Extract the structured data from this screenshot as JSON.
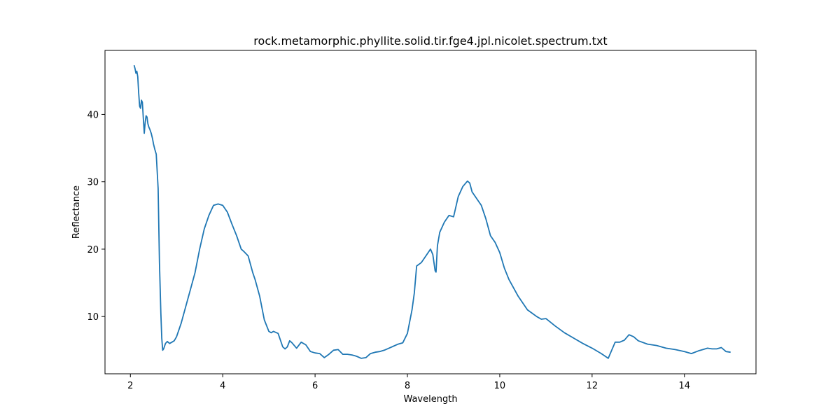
{
  "chart_data": {
    "type": "line",
    "title": "rock.metamorphic.phyllite.solid.tir.fge4.jpl.nicolet.spectrum.txt",
    "xlabel": "Wavelength",
    "ylabel": "Reflectance",
    "xlim": [
      1.45,
      15.55
    ],
    "ylim": [
      1.5,
      49.5
    ],
    "xticks": [
      2,
      4,
      6,
      8,
      10,
      12,
      14
    ],
    "yticks": [
      10,
      20,
      30,
      40
    ],
    "grid": false,
    "legend": "none",
    "series_color": "#1f77b4",
    "series": [
      {
        "x": [
          2.08,
          2.1,
          2.12,
          2.14,
          2.16,
          2.18,
          2.2,
          2.22,
          2.24,
          2.26,
          2.28,
          2.3,
          2.32,
          2.34,
          2.36,
          2.38,
          2.4,
          2.42,
          2.45,
          2.48,
          2.5,
          2.53,
          2.56,
          2.6,
          2.63,
          2.66,
          2.68,
          2.7,
          2.72,
          2.74,
          2.76,
          2.8,
          2.85,
          2.9,
          2.95,
          3.0,
          3.1,
          3.2,
          3.3,
          3.4,
          3.5,
          3.6,
          3.7,
          3.8,
          3.9,
          4.0,
          4.1,
          4.2,
          4.3,
          4.4,
          4.45,
          4.55,
          4.65,
          4.7,
          4.8,
          4.9,
          5.0,
          5.05,
          5.1,
          5.2,
          5.3,
          5.35,
          5.4,
          5.45,
          5.5,
          5.6,
          5.7,
          5.8,
          5.9,
          6.0,
          6.1,
          6.2,
          6.3,
          6.4,
          6.5,
          6.6,
          6.7,
          6.8,
          6.9,
          7.0,
          7.1,
          7.2,
          7.3,
          7.4,
          7.5,
          7.6,
          7.7,
          7.8,
          7.9,
          8.0,
          8.1,
          8.15,
          8.2,
          8.3,
          8.4,
          8.5,
          8.55,
          8.6,
          8.62,
          8.65,
          8.7,
          8.8,
          8.9,
          9.0,
          9.1,
          9.2,
          9.3,
          9.35,
          9.4,
          9.5,
          9.6,
          9.7,
          9.8,
          9.9,
          10.0,
          10.1,
          10.2,
          10.4,
          10.6,
          10.8,
          10.9,
          11.0,
          11.2,
          11.4,
          11.6,
          11.8,
          12.0,
          12.2,
          12.35,
          12.5,
          12.6,
          12.7,
          12.8,
          12.9,
          13.0,
          13.2,
          13.4,
          13.6,
          13.8,
          14.0,
          14.15,
          14.3,
          14.4,
          14.5,
          14.6,
          14.7,
          14.8,
          14.9,
          15.0
        ],
        "values": [
          47.3,
          46.8,
          46.1,
          46.4,
          45.6,
          43.2,
          41.2,
          40.9,
          42.1,
          41.8,
          39.5,
          37.2,
          38.8,
          39.8,
          39.6,
          38.6,
          38.1,
          37.8,
          37.2,
          36.4,
          35.6,
          34.8,
          34.1,
          29.0,
          18.0,
          10.5,
          6.8,
          5.0,
          5.2,
          5.6,
          6.0,
          6.3,
          6.0,
          6.2,
          6.4,
          7.0,
          9.0,
          11.5,
          14.0,
          16.5,
          20.0,
          23.0,
          25.0,
          26.5,
          26.7,
          26.5,
          25.5,
          23.7,
          22.0,
          20.0,
          19.7,
          19.0,
          16.5,
          15.5,
          13.0,
          9.5,
          7.8,
          7.6,
          7.8,
          7.5,
          5.5,
          5.2,
          5.5,
          6.4,
          6.1,
          5.3,
          6.2,
          5.8,
          4.8,
          4.6,
          4.5,
          3.9,
          4.4,
          5.0,
          5.1,
          4.4,
          4.4,
          4.3,
          4.1,
          3.8,
          3.9,
          4.5,
          4.7,
          4.8,
          5.0,
          5.3,
          5.6,
          5.9,
          6.1,
          7.5,
          11.0,
          13.5,
          17.5,
          18.0,
          19.0,
          20.0,
          19.2,
          16.8,
          16.6,
          20.5,
          22.5,
          24.0,
          25.0,
          24.8,
          27.8,
          29.3,
          30.1,
          29.8,
          28.5,
          27.5,
          26.5,
          24.5,
          22.0,
          21.0,
          19.5,
          17.2,
          15.5,
          13.0,
          11.0,
          10.0,
          9.6,
          9.7,
          8.6,
          7.6,
          6.8,
          6.0,
          5.3,
          4.5,
          3.8,
          6.2,
          6.2,
          6.5,
          7.3,
          7.0,
          6.4,
          5.9,
          5.7,
          5.3,
          5.1,
          4.8,
          4.5,
          4.9,
          5.1,
          5.3,
          5.2,
          5.2,
          5.4,
          4.8,
          4.7
        ]
      }
    ]
  }
}
